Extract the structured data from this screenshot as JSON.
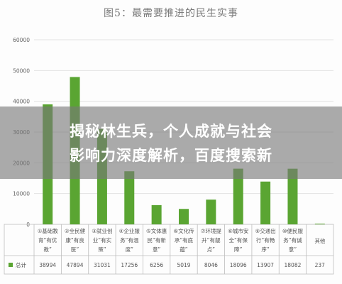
{
  "chart_data": {
    "type": "bar",
    "title": "图5：最需要推进的民生实事",
    "categories": [
      [
        "①基础教",
        "育“有优",
        "教”"
      ],
      [
        "②全民健",
        "康“有良",
        "医”"
      ],
      [
        "③就业创",
        "业“有实",
        "策”"
      ],
      [
        "④企业服",
        "务“有温",
        "度”"
      ],
      [
        "⑤文体惠",
        "民“有新",
        "意”"
      ],
      [
        "⑥文化传",
        "承“有底",
        "蕴”"
      ],
      [
        "⑦环境提",
        "升“有靓",
        "点”"
      ],
      [
        "⑧城市安",
        "全“有保",
        "障”"
      ],
      [
        "⑨交通出",
        "行“有畅",
        "序”"
      ],
      [
        "⑩便民服",
        "务“有诚",
        "意”"
      ],
      [
        "其他"
      ]
    ],
    "values": [
      38994,
      47894,
      31031,
      17256,
      6256,
      5019,
      8046,
      18096,
      13907,
      18082,
      237
    ],
    "value_labels": [
      "38994",
      "47894",
      "31031",
      "17256",
      "6256",
      "5019",
      "8046",
      "18096",
      "13907",
      "18082",
      "237"
    ],
    "y_ticks": [
      "0",
      "10000",
      "20000",
      "30000",
      "40000",
      "50000",
      "60000"
    ],
    "ylim": [
      0,
      60000
    ],
    "grid": true,
    "series_label": "总计",
    "bar_color": "#5aa532"
  },
  "headline": {
    "line1": "揭秘林生兵，个人成就与社会",
    "line2": "影响力深度解析，百度搜索新"
  }
}
